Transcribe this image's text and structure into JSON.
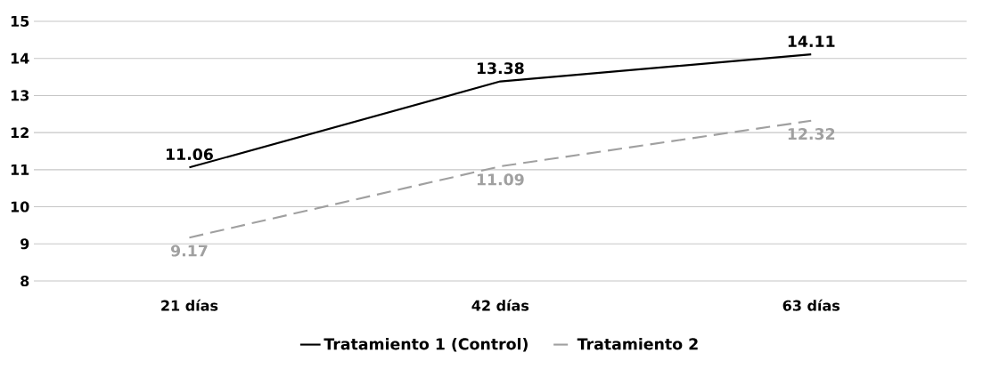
{
  "chart_data": {
    "type": "line",
    "categories": [
      "21 días",
      "42 días",
      "63 días"
    ],
    "series": [
      {
        "name": "Tratamiento 1 (Control)",
        "color": "#000000",
        "line_style": "solid",
        "values": [
          11.06,
          13.38,
          14.11
        ]
      },
      {
        "name": "Tratamiento 2",
        "color": "#a0a0a0",
        "line_style": "dashed",
        "values": [
          9.17,
          11.09,
          12.32
        ]
      }
    ],
    "ylim": [
      8,
      15
    ],
    "yticks": [
      8,
      9,
      10,
      11,
      12,
      13,
      14,
      15
    ],
    "grid": "y",
    "legend": "bottom",
    "data_labels": true
  }
}
